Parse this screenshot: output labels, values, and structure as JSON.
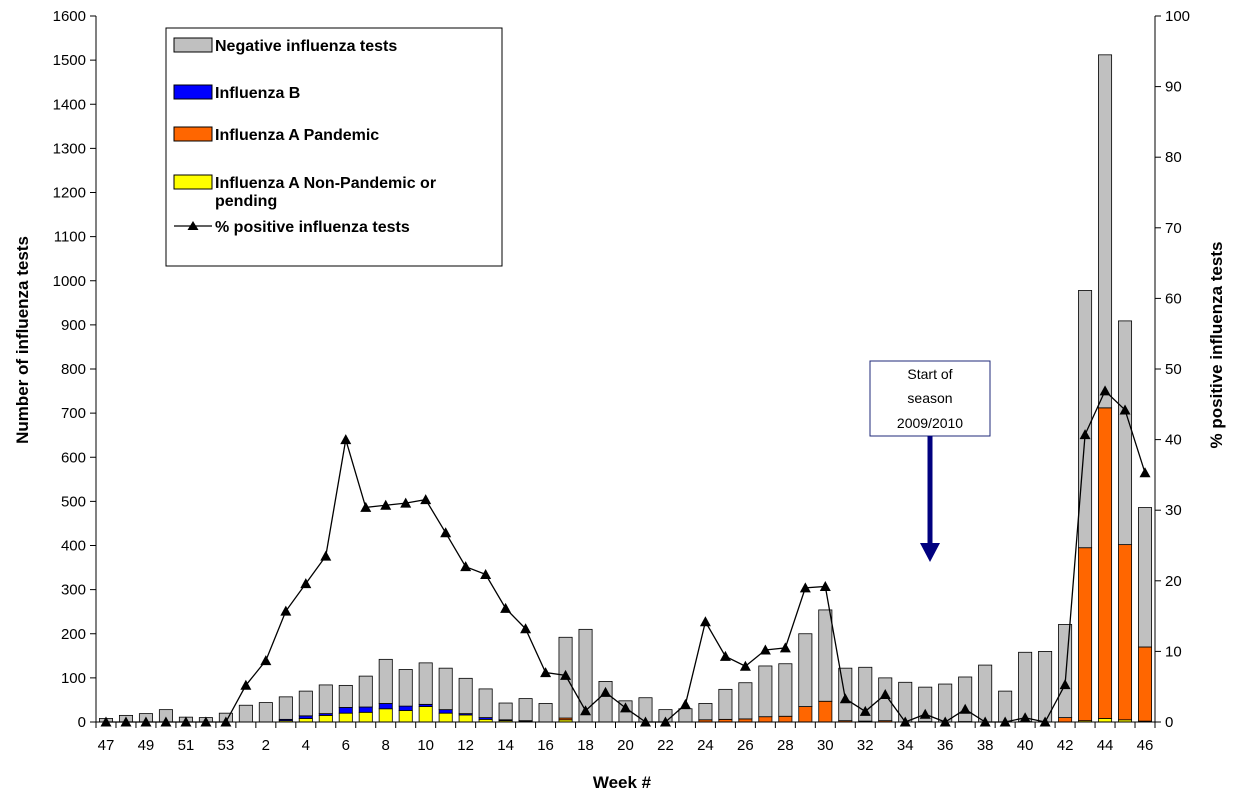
{
  "chart_data": {
    "type": "bar",
    "stacked": true,
    "categories": [
      "47",
      "48",
      "49",
      "50",
      "51",
      "52",
      "53",
      "1",
      "2",
      "3",
      "4",
      "5",
      "6",
      "7",
      "8",
      "9",
      "10",
      "11",
      "12",
      "13",
      "14",
      "15",
      "16",
      "17",
      "18",
      "19",
      "20",
      "21",
      "22",
      "23",
      "24",
      "25",
      "26",
      "27",
      "28",
      "29",
      "30",
      "31",
      "32",
      "33",
      "34",
      "35",
      "36",
      "37",
      "38",
      "39",
      "40",
      "41",
      "42",
      "43",
      "44",
      "45",
      "46"
    ],
    "xtick_labels": [
      "47",
      "",
      "49",
      "",
      "51",
      "",
      "53",
      "",
      "2",
      "",
      "4",
      "",
      "6",
      "",
      "8",
      "",
      "10",
      "",
      "12",
      "",
      "14",
      "",
      "16",
      "",
      "18",
      "",
      "20",
      "",
      "22",
      "",
      "24",
      "",
      "26",
      "",
      "28",
      "",
      "30",
      "",
      "32",
      "",
      "34",
      "",
      "36",
      "",
      "38",
      "",
      "40",
      "",
      "42",
      "",
      "44",
      "",
      "46"
    ],
    "xlabel": "Week #",
    "ylabel_left": "Number of influenza tests",
    "ylabel_right": "% positive influenza tests",
    "ylim_left": [
      0,
      1600
    ],
    "yticks_left": [
      0,
      100,
      200,
      300,
      400,
      500,
      600,
      700,
      800,
      900,
      1000,
      1100,
      1200,
      1300,
      1400,
      1500,
      1600
    ],
    "ylim_right": [
      0,
      100
    ],
    "yticks_right": [
      0,
      10,
      20,
      30,
      40,
      50,
      60,
      70,
      80,
      90,
      100
    ],
    "grid": false,
    "legend_position": "top-left",
    "series": [
      {
        "name": "Influenza A Non-Pandemic or pending",
        "color": "#ffff00",
        "kind": "bar",
        "axis": "left",
        "values": [
          0,
          0,
          0,
          0,
          0,
          0,
          0,
          0,
          0,
          3,
          8,
          15,
          20,
          22,
          30,
          26,
          35,
          20,
          16,
          6,
          3,
          2,
          0,
          5,
          0,
          0,
          0,
          0,
          0,
          0,
          0,
          0,
          0,
          0,
          0,
          0,
          0,
          0,
          0,
          0,
          0,
          0,
          0,
          0,
          0,
          0,
          0,
          0,
          0,
          3,
          8,
          5,
          2
        ]
      },
      {
        "name": "Influenza B",
        "color": "#0000ff",
        "kind": "bar",
        "axis": "left",
        "values": [
          0,
          0,
          0,
          0,
          0,
          0,
          0,
          0,
          0,
          3,
          6,
          4,
          13,
          12,
          12,
          10,
          5,
          8,
          3,
          4,
          2,
          1,
          0,
          0,
          0,
          0,
          0,
          0,
          0,
          0,
          0,
          0,
          0,
          0,
          0,
          0,
          0,
          0,
          0,
          0,
          0,
          0,
          0,
          0,
          0,
          0,
          0,
          0,
          0,
          0,
          0,
          0,
          0
        ]
      },
      {
        "name": "Influenza A Pandemic",
        "color": "#ff6600",
        "kind": "bar",
        "axis": "left",
        "values": [
          0,
          0,
          0,
          0,
          0,
          0,
          0,
          0,
          0,
          0,
          0,
          0,
          0,
          0,
          0,
          0,
          0,
          0,
          0,
          0,
          0,
          0,
          0,
          4,
          0,
          0,
          0,
          0,
          0,
          0,
          5,
          6,
          7,
          12,
          13,
          35,
          47,
          3,
          2,
          3,
          0,
          1,
          0,
          1,
          0,
          0,
          1,
          0,
          10,
          392,
          704,
          397,
          168
        ]
      },
      {
        "name": "Negative influenza tests",
        "color": "#c0c0c0",
        "kind": "bar",
        "axis": "left",
        "values": [
          8,
          15,
          19,
          28,
          11,
          10,
          20,
          38,
          44,
          51,
          56,
          65,
          50,
          70,
          100,
          83,
          94,
          94,
          80,
          65,
          38,
          50,
          42,
          183,
          210,
          92,
          48,
          55,
          28,
          30,
          37,
          68,
          82,
          115,
          119,
          165,
          207,
          119,
          122,
          97,
          90,
          78,
          86,
          101,
          129,
          70,
          157,
          160,
          211,
          583,
          800,
          507,
          316
        ]
      },
      {
        "name": "% positive influenza tests",
        "color": "#000000",
        "kind": "line",
        "marker": "triangle",
        "axis": "right",
        "values": [
          0,
          0,
          0,
          0,
          0,
          0,
          0,
          5.2,
          8.7,
          15.7,
          19.6,
          23.5,
          40,
          30.4,
          30.7,
          31,
          31.5,
          26.8,
          22,
          20.9,
          16.1,
          13.2,
          7,
          6.6,
          1.6,
          4.2,
          2,
          0,
          0,
          2.5,
          14.2,
          9.3,
          7.9,
          10.2,
          10.5,
          19,
          19.2,
          3.3,
          1.5,
          3.9,
          0,
          1.1,
          0,
          1.8,
          0,
          0,
          0.6,
          0,
          5.3,
          40.7,
          46.9,
          44.2,
          35.3
        ]
      }
    ],
    "legend_entries": [
      "Negative influenza tests",
      "Influenza B",
      "Influenza A Pandemic",
      "Influenza A Non-Pandemic or pending",
      "% positive influenza tests"
    ],
    "annotation": {
      "lines": [
        "Start of",
        "season",
        "2009/2010"
      ],
      "week": "35"
    }
  }
}
